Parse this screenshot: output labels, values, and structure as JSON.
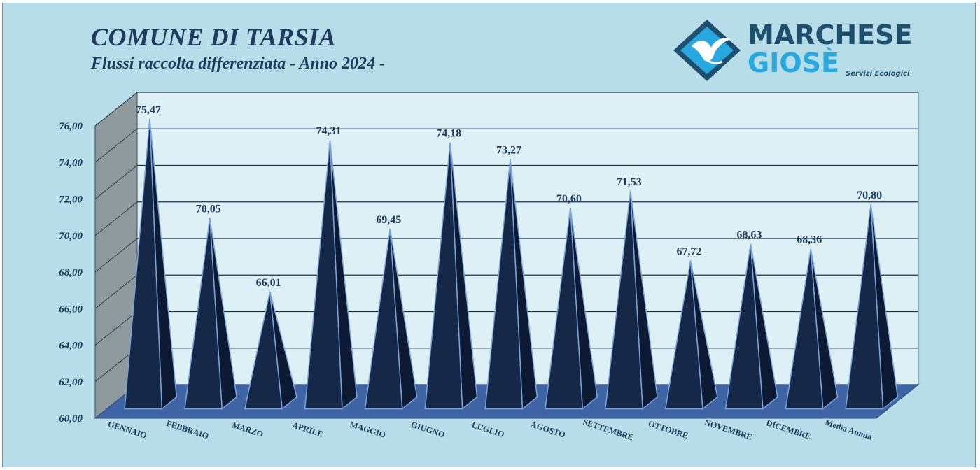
{
  "header": {
    "title": "COMUNE DI TARSIA",
    "subtitle": "Flussi raccolta differenziata - Anno 2024 -"
  },
  "logo": {
    "name_line1": "MARCHESE",
    "name_line2": "GIOSÈ",
    "tagline": "Servizi Ecologici",
    "icon": "seagull-diamond-icon"
  },
  "colors": {
    "background": "#b7dde8",
    "plot_back_wall": "#ddf0f6",
    "side_wall": "#8e9a9e",
    "floor": "#3f64a3",
    "pyramid_front": "#152848",
    "pyramid_side": "#0c1a33",
    "pyramid_edge": "#7aa4dc",
    "text": "#1e3a5f"
  },
  "chart_data": {
    "type": "bar",
    "bar_shape": "3d-pyramid",
    "title": "COMUNE DI TARSIA",
    "subtitle": "Flussi raccolta differenziata - Anno 2024 -",
    "categories": [
      "GENNAIO",
      "FEBBRAIO",
      "MARZO",
      "APRILE",
      "MAGGIO",
      "GIUGNO",
      "LUGLIO",
      "AGOSTO",
      "SETTEMBRE",
      "OTTOBRE",
      "NOVEMBRE",
      "DICEMBRE",
      "Media Annua"
    ],
    "values": [
      75.47,
      70.05,
      66.01,
      74.31,
      69.45,
      74.18,
      73.27,
      70.6,
      71.53,
      67.72,
      68.63,
      68.36,
      70.8
    ],
    "value_labels": [
      "75,47",
      "70,05",
      "66,01",
      "74,31",
      "69,45",
      "74,18",
      "73,27",
      "70,60",
      "71,53",
      "67,72",
      "68,63",
      "68,36",
      "70,80"
    ],
    "y_ticks": [
      "60,00",
      "62,00",
      "64,00",
      "66,00",
      "68,00",
      "70,00",
      "72,00",
      "74,00",
      "76,00"
    ],
    "ylim": [
      60,
      76
    ],
    "grid": true,
    "legend": "none",
    "xlabel": "",
    "ylabel": ""
  }
}
